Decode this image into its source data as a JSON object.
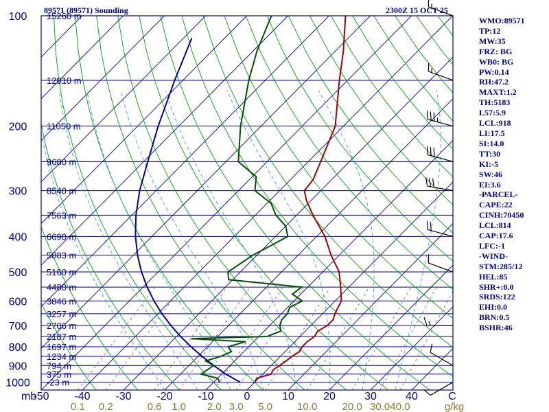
{
  "header": {
    "station_title": "89571 (89571) Sounding",
    "datetime": "2300Z 15 OCT 25"
  },
  "sidebar": {
    "lines": [
      "WMO:89571",
      "TP:12",
      "MW:35",
      "FRZ: BG",
      "WB0: BG",
      "PW:0.14",
      "RH:47.2",
      "MAXT:1.2",
      "TH:5183",
      "L57:5.9",
      "LCL:918",
      "LI:17.5",
      "SI:14.0",
      "TT:30",
      "KI:-5",
      "SW:46",
      "EI:3.6",
      "-PARCEL-",
      "CAPE:22",
      "CINH:70450",
      "LCL:814",
      "CAP:17.6",
      "LFC:-1",
      "-WIND-",
      "STM:285/12",
      "HEL:85",
      "SHR+:0.0",
      "SRDS:122",
      "EHI:0.0",
      "BRN:0.5",
      "BSHR:46"
    ]
  },
  "colors": {
    "isobar": "#000090",
    "isotherm": "#000090",
    "dry_adiabat": "#00a000",
    "moist_adiabat": "#3399ff",
    "mixing_ratio": "#555555",
    "temperature": "#a00000",
    "dewpoint": "#005000",
    "parcel": "#000090",
    "mixing_label": "#8a7a2a",
    "text": "#000090",
    "wind": "#000000"
  },
  "chart_data": {
    "type": "line",
    "title": "89571 (89571) Sounding",
    "pressure_unit_label": "mb",
    "pressure_ticks": [
      {
        "p": 100,
        "label": "100"
      },
      {
        "p": 200,
        "label": "200"
      },
      {
        "p": 300,
        "label": "300"
      },
      {
        "p": 400,
        "label": "400"
      },
      {
        "p": 500,
        "label": "500"
      },
      {
        "p": 600,
        "label": "600"
      },
      {
        "p": 700,
        "label": "700"
      },
      {
        "p": 800,
        "label": "800"
      },
      {
        "p": 900,
        "label": "900"
      },
      {
        "p": 1000,
        "label": "1000"
      }
    ],
    "height_labels": [
      {
        "p": 100,
        "label": "15260 m"
      },
      {
        "p": 150,
        "label": "12810 m"
      },
      {
        "p": 200,
        "label": "11050 m"
      },
      {
        "p": 250,
        "label": "9680 m"
      },
      {
        "p": 300,
        "label": "8540 m"
      },
      {
        "p": 350,
        "label": "7563 m"
      },
      {
        "p": 400,
        "label": "6690 m"
      },
      {
        "p": 450,
        "label": "5883 m"
      },
      {
        "p": 500,
        "label": "5160 m"
      },
      {
        "p": 550,
        "label": "4480 m"
      },
      {
        "p": 600,
        "label": "3846 m"
      },
      {
        "p": 650,
        "label": "3257 m"
      },
      {
        "p": 700,
        "label": "2706 m"
      },
      {
        "p": 750,
        "label": "2187 m"
      },
      {
        "p": 800,
        "label": "1697 m"
      },
      {
        "p": 850,
        "label": "1234 m"
      },
      {
        "p": 900,
        "label": "794 m"
      },
      {
        "p": 950,
        "label": "375 m"
      },
      {
        "p": 1000,
        "label": "-23 m"
      }
    ],
    "temperature_ticks": [
      {
        "t": -50,
        "label": "-50"
      },
      {
        "t": -40,
        "label": "-40"
      },
      {
        "t": -30,
        "label": "-30"
      },
      {
        "t": -20,
        "label": "-20"
      },
      {
        "t": -10,
        "label": "-10"
      },
      {
        "t": 0,
        "label": "0"
      },
      {
        "t": 10,
        "label": "10"
      },
      {
        "t": 20,
        "label": "20"
      },
      {
        "t": 30,
        "label": "30"
      },
      {
        "t": 40,
        "label": "40"
      }
    ],
    "temperature_unit_label": "C",
    "mixing_ratio_labels": [
      {
        "w": 0.1,
        "label": "0.1"
      },
      {
        "w": 0.2,
        "label": "0.2"
      },
      {
        "w": 0.6,
        "label": "0.6"
      },
      {
        "w": 1.0,
        "label": "1.0"
      },
      {
        "w": 2.0,
        "label": "2.0"
      },
      {
        "w": 3.0,
        "label": "3.0"
      },
      {
        "w": 5.0,
        "label": "5.0"
      },
      {
        "w": 10.0,
        "label": "10.0"
      },
      {
        "w": 20.0,
        "label": "20.0"
      },
      {
        "w": 30.0,
        "label": "30.0"
      },
      {
        "w": 40.0,
        "label": "40.0"
      }
    ],
    "mixing_ratio_unit_label": "g/kg",
    "temperature_profile": [
      [
        1000,
        0.0
      ],
      [
        975,
        -0.5
      ],
      [
        950,
        2.0
      ],
      [
        925,
        1.5
      ],
      [
        900,
        2.0
      ],
      [
        875,
        2.5
      ],
      [
        850,
        2.8
      ],
      [
        825,
        3.5
      ],
      [
        800,
        3.0
      ],
      [
        775,
        3.0
      ],
      [
        750,
        3.5
      ],
      [
        725,
        3.0
      ],
      [
        700,
        4.0
      ],
      [
        675,
        4.0
      ],
      [
        650,
        3.0
      ],
      [
        600,
        1.5
      ],
      [
        550,
        -2.0
      ],
      [
        500,
        -6.0
      ],
      [
        450,
        -12.0
      ],
      [
        400,
        -18.0
      ],
      [
        350,
        -26.0
      ],
      [
        320,
        -31.0
      ],
      [
        300,
        -34.0
      ],
      [
        280,
        -34.5
      ],
      [
        250,
        -37.0
      ],
      [
        200,
        -42.0
      ],
      [
        150,
        -52.0
      ],
      [
        125,
        -58.0
      ],
      [
        100,
        -66.0
      ]
    ],
    "dewpoint_profile": [
      [
        1000,
        -8.5
      ],
      [
        975,
        -10.0
      ],
      [
        950,
        -15.0
      ],
      [
        925,
        -14.5
      ],
      [
        900,
        -14.0
      ],
      [
        875,
        -17.0
      ],
      [
        850,
        -14.5
      ],
      [
        825,
        -13.0
      ],
      [
        800,
        -15.0
      ],
      [
        775,
        -12.0
      ],
      [
        760,
        -26.0
      ],
      [
        750,
        -8.0
      ],
      [
        725,
        -6.0
      ],
      [
        700,
        -7.5
      ],
      [
        675,
        -8.5
      ],
      [
        650,
        -8.5
      ],
      [
        625,
        -9.5
      ],
      [
        600,
        -8.0
      ],
      [
        575,
        -12.0
      ],
      [
        550,
        -11.5
      ],
      [
        525,
        -31.0
      ],
      [
        500,
        -33.0
      ],
      [
        475,
        -32.0
      ],
      [
        450,
        -31.0
      ],
      [
        425,
        -29.0
      ],
      [
        400,
        -27.0
      ],
      [
        375,
        -30.0
      ],
      [
        350,
        -35.0
      ],
      [
        325,
        -39.0
      ],
      [
        300,
        -46.0
      ],
      [
        275,
        -49.0
      ],
      [
        250,
        -57.0
      ],
      [
        200,
        -65.0
      ],
      [
        150,
        -74.0
      ],
      [
        125,
        -79.0
      ],
      [
        100,
        -84.0
      ]
    ],
    "parcel_profile": [
      [
        1000,
        -3.5
      ],
      [
        950,
        -9.0
      ],
      [
        900,
        -14.0
      ],
      [
        850,
        -19.0
      ],
      [
        800,
        -24.0
      ],
      [
        750,
        -29.0
      ],
      [
        700,
        -34.0
      ],
      [
        650,
        -39.0
      ],
      [
        600,
        -44.0
      ],
      [
        550,
        -49.0
      ],
      [
        500,
        -54.0
      ],
      [
        450,
        -59.0
      ],
      [
        400,
        -64.0
      ],
      [
        350,
        -69.0
      ],
      [
        300,
        -74.0
      ],
      [
        250,
        -79.0
      ],
      [
        200,
        -85.0
      ],
      [
        150,
        -92.0
      ],
      [
        115,
        -98.0
      ]
    ],
    "wind_barbs": [
      {
        "p": 100,
        "dir": 290,
        "spd": 15
      },
      {
        "p": 150,
        "dir": 290,
        "spd": 15
      },
      {
        "p": 200,
        "dir": 285,
        "spd": 35
      },
      {
        "p": 250,
        "dir": 285,
        "spd": 30
      },
      {
        "p": 300,
        "dir": 280,
        "spd": 30
      },
      {
        "p": 400,
        "dir": 285,
        "spd": 20
      },
      {
        "p": 500,
        "dir": 290,
        "spd": 10
      },
      {
        "p": 700,
        "dir": 270,
        "spd": 15
      },
      {
        "p": 900,
        "dir": 300,
        "spd": 10
      },
      {
        "p": 1000,
        "dir": 240,
        "spd": 10
      }
    ],
    "p_range": [
      100,
      1050
    ],
    "t_range_at_bottom": [
      -50,
      50
    ],
    "grid": true
  }
}
